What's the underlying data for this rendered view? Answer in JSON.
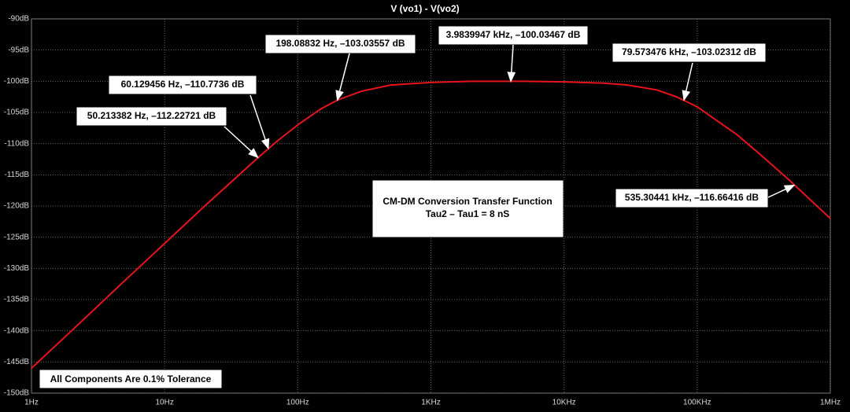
{
  "chart_data": {
    "type": "line",
    "title": "V (vo1) - V(vo2)",
    "xscale": "log",
    "grid": true,
    "xlim": [
      1,
      1000000
    ],
    "ylim": [
      -150,
      -90
    ],
    "xticks": [
      {
        "value": 1,
        "label": "1Hz"
      },
      {
        "value": 10,
        "label": "10Hz"
      },
      {
        "value": 100,
        "label": "100Hz"
      },
      {
        "value": 1000,
        "label": "1KHz"
      },
      {
        "value": 10000,
        "label": "10KHz"
      },
      {
        "value": 100000,
        "label": "100KHz"
      },
      {
        "value": 1000000,
        "label": "1MHz"
      }
    ],
    "yticks": [
      {
        "value": -90,
        "label": "-90dB"
      },
      {
        "value": -95,
        "label": "-95dB"
      },
      {
        "value": -100,
        "label": "-100dB"
      },
      {
        "value": -105,
        "label": "-105dB"
      },
      {
        "value": -110,
        "label": "-110dB"
      },
      {
        "value": -115,
        "label": "-115dB"
      },
      {
        "value": -120,
        "label": "-120dB"
      },
      {
        "value": -125,
        "label": "-125dB"
      },
      {
        "value": -130,
        "label": "-130dB"
      },
      {
        "value": -135,
        "label": "-135dB"
      },
      {
        "value": -140,
        "label": "-140dB"
      },
      {
        "value": -145,
        "label": "-145dB"
      },
      {
        "value": -150,
        "label": "-150dB"
      }
    ],
    "series": [
      {
        "color": "#e8141c",
        "x": [
          1,
          2,
          5,
          10,
          20,
          30,
          50,
          70,
          100,
          150,
          200,
          300,
          500,
          1000,
          2000,
          5000,
          10000,
          20000,
          30000,
          50000,
          70000,
          100000,
          200000,
          300000,
          500000,
          1000000
        ],
        "values": [
          -146.0,
          -140.0,
          -132.0,
          -126.0,
          -120.0,
          -116.6,
          -112.3,
          -109.6,
          -107.0,
          -104.4,
          -103.0,
          -101.6,
          -100.6,
          -100.2,
          -100.0,
          -100.0,
          -100.1,
          -100.3,
          -100.6,
          -101.4,
          -102.5,
          -104.1,
          -108.6,
          -111.8,
          -116.0,
          -122.0
        ]
      }
    ],
    "annotations": [
      {
        "label": "50.213382 Hz, –112.22721 dB",
        "x": 50.213382,
        "y": -112.22721
      },
      {
        "label": "60.129456 Hz, –110.7736 dB",
        "x": 60.129456,
        "y": -110.7736
      },
      {
        "label": "198.08832 Hz, –103.03557 dB",
        "x": 198.08832,
        "y": -103.03557
      },
      {
        "label": "3.9839947 kHz, –100.03467 dB",
        "x": 3983.9947,
        "y": -100.03467
      },
      {
        "label": "79.573476 kHz, –103.02312 dB",
        "x": 79573.476,
        "y": -103.02312
      },
      {
        "label": "535.30441 kHz, –116.66416 dB",
        "x": 535304.41,
        "y": -116.66416
      }
    ],
    "notes": [
      "CM-DM Conversion Transfer Function",
      "Tau2 – Tau1 = 8 nS",
      "All Components Are 0.1% Tolerance"
    ]
  }
}
